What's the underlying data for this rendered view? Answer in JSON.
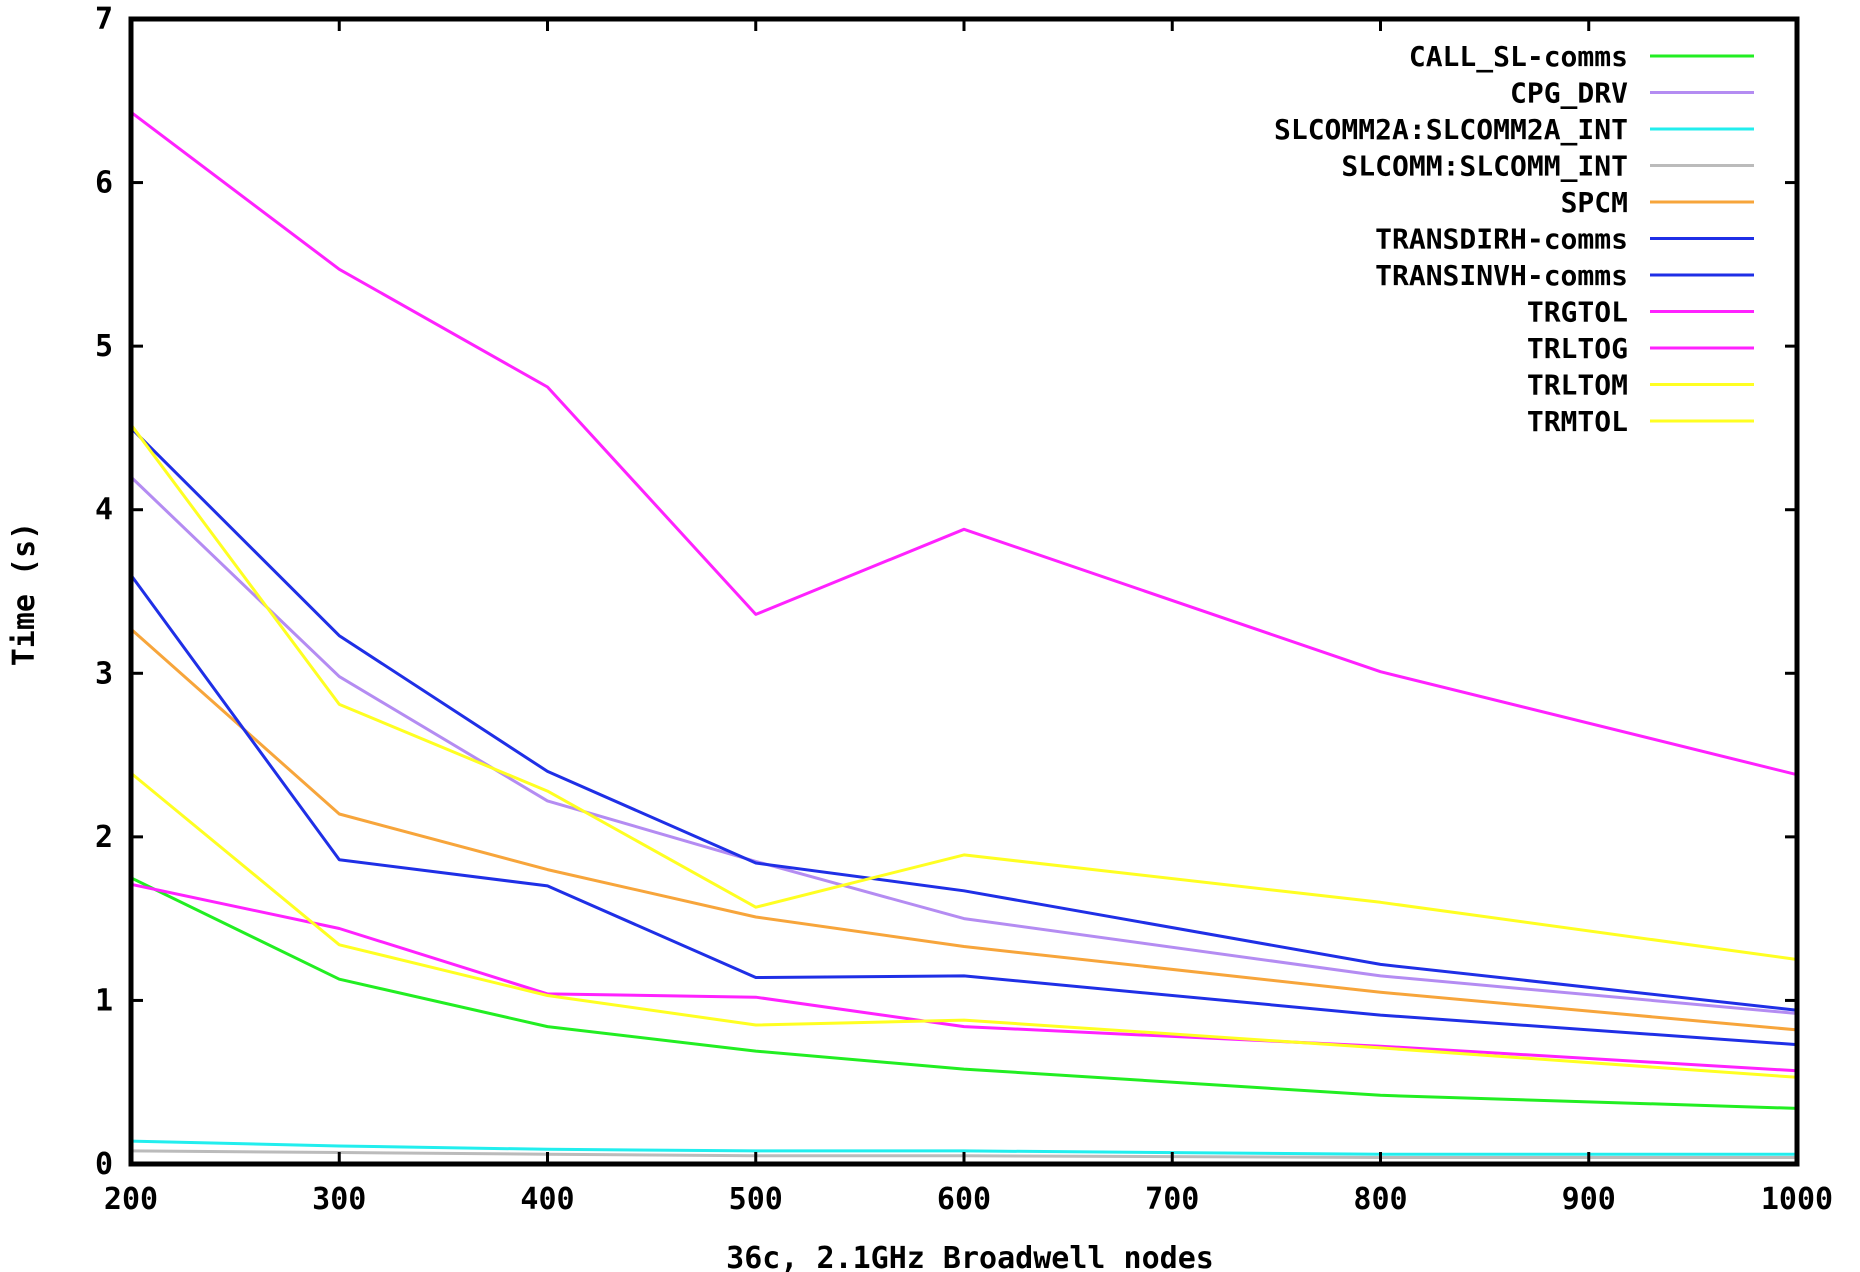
{
  "chart_data": {
    "type": "line",
    "title": "",
    "xlabel": "36c, 2.1GHz Broadwell nodes",
    "ylabel": "Time (s)",
    "xlim": [
      200,
      1000
    ],
    "ylim": [
      0,
      7
    ],
    "xticks": [
      200,
      300,
      400,
      500,
      600,
      700,
      800,
      900,
      1000
    ],
    "yticks": [
      0,
      1,
      2,
      3,
      4,
      5,
      6,
      7
    ],
    "grid": false,
    "legend_position": "top-right",
    "x": [
      200,
      300,
      400,
      500,
      600,
      800,
      1000
    ],
    "series": [
      {
        "name": "CALL_SL-comms",
        "color": "#22ee22",
        "values": [
          1.75,
          1.13,
          0.84,
          0.69,
          0.58,
          0.42,
          0.34
        ]
      },
      {
        "name": "CPG_DRV",
        "color": "#b48cf2",
        "values": [
          4.2,
          2.98,
          2.22,
          1.85,
          1.5,
          1.15,
          0.92
        ]
      },
      {
        "name": "SLCOMM2A:SLCOMM2A_INT",
        "color": "#22eeee",
        "values": [
          0.14,
          0.11,
          0.09,
          0.08,
          0.08,
          0.06,
          0.06
        ]
      },
      {
        "name": "SLCOMM:SLCOMM_INT",
        "color": "#bbbbbb",
        "values": [
          0.08,
          0.07,
          0.06,
          0.05,
          0.05,
          0.04,
          0.04
        ]
      },
      {
        "name": "SPCM",
        "color": "#f7a53b",
        "values": [
          3.27,
          2.14,
          1.8,
          1.51,
          1.33,
          1.05,
          0.82
        ]
      },
      {
        "name": "TRANSDIRH-comms",
        "color": "#1f2fe6",
        "values": [
          4.5,
          3.23,
          2.4,
          1.84,
          1.67,
          1.22,
          0.94
        ]
      },
      {
        "name": "TRANSINVH-comms",
        "color": "#1f2fe6",
        "values": [
          3.6,
          1.86,
          1.7,
          1.14,
          1.15,
          0.91,
          0.73
        ]
      },
      {
        "name": "TRGTOL",
        "color": "#ff22ff",
        "values": [
          6.43,
          5.47,
          4.75,
          3.36,
          3.88,
          3.01,
          2.38
        ]
      },
      {
        "name": "TRLTOG",
        "color": "#ff22ff",
        "values": [
          1.71,
          1.44,
          1.04,
          1.02,
          0.84,
          0.72,
          0.57
        ]
      },
      {
        "name": "TRLTOM",
        "color": "#ffff22",
        "values": [
          4.52,
          2.81,
          2.28,
          1.57,
          1.89,
          1.6,
          1.25
        ]
      },
      {
        "name": "TRMTOL",
        "color": "#ffff22",
        "values": [
          2.39,
          1.34,
          1.03,
          0.85,
          0.88,
          0.71,
          0.53
        ]
      }
    ]
  }
}
